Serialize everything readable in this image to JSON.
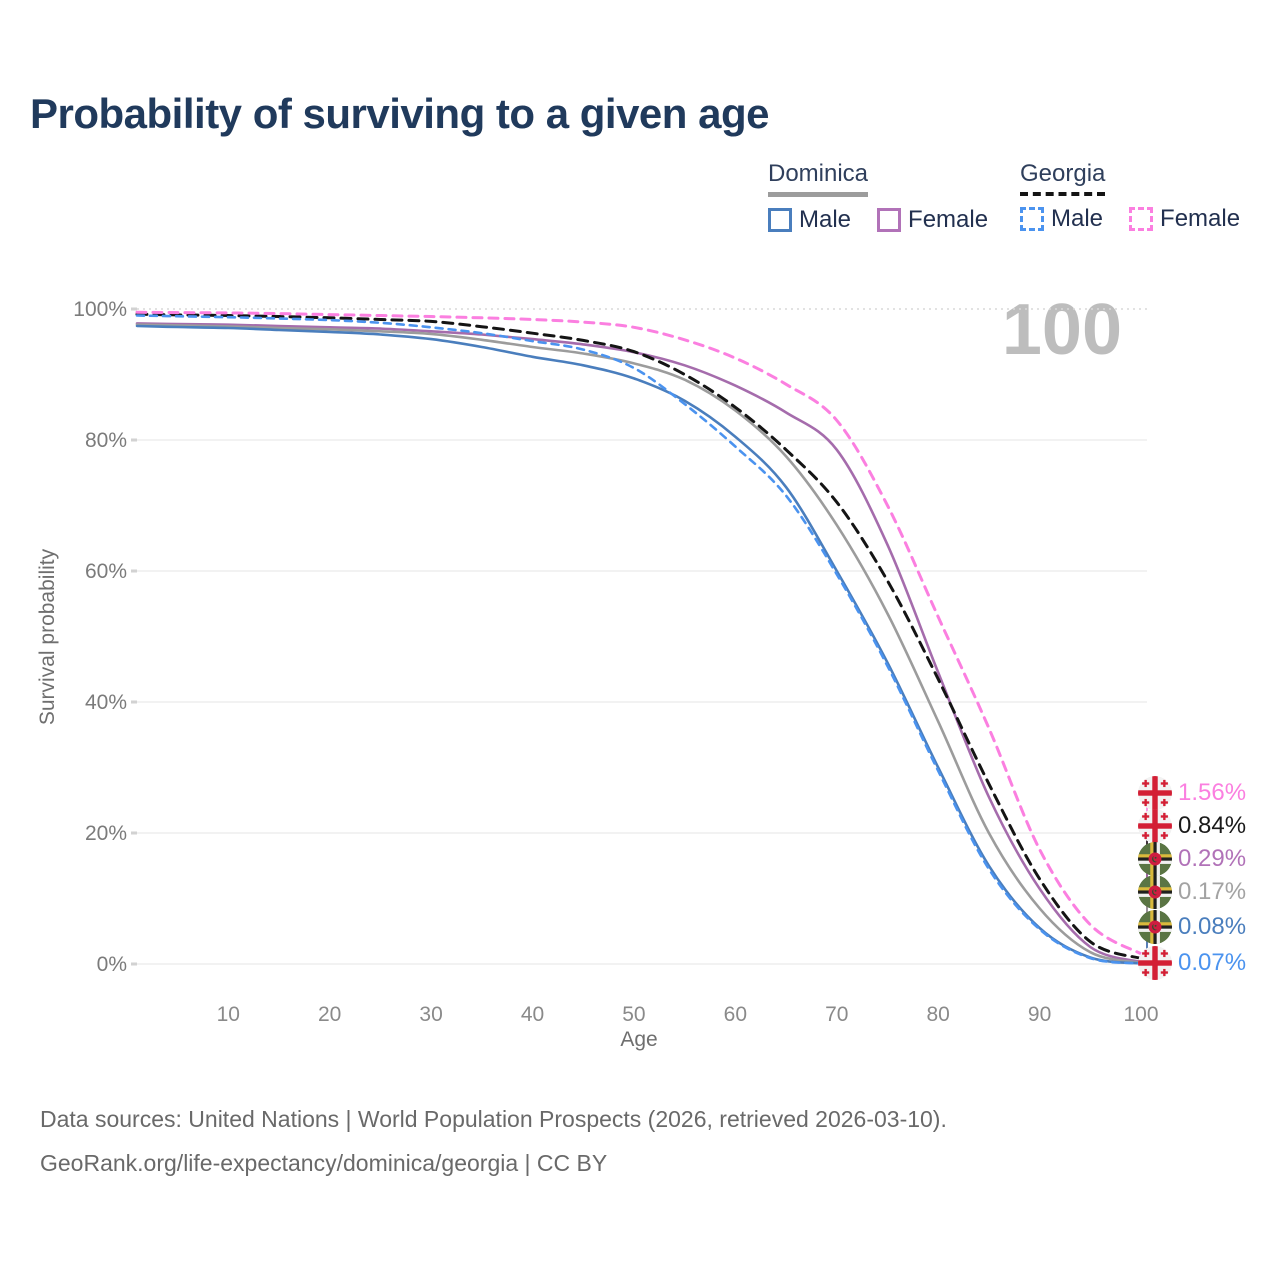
{
  "title": "Probability of surviving to a given age",
  "watermark_age_label": "100",
  "legend": {
    "groups": [
      {
        "name": "Dominica",
        "line_style": "solid",
        "line_color": "#9c9c9c",
        "items": [
          {
            "label": "Male",
            "color": "#4a7ebd",
            "dashed": false
          },
          {
            "label": "Female",
            "color": "#b172b8",
            "dashed": false
          }
        ]
      },
      {
        "name": "Georgia",
        "line_style": "dashed",
        "line_color": "#141414",
        "items": [
          {
            "label": "Male",
            "color": "#4b93ef",
            "dashed": true
          },
          {
            "label": "Female",
            "color": "#fb7fe0",
            "dashed": true
          }
        ]
      }
    ]
  },
  "chart_data": {
    "type": "line",
    "title": "Probability of surviving to a given age",
    "xlabel": "Age",
    "ylabel": "Survival probability",
    "xlim": [
      1,
      100
    ],
    "ylim": [
      0,
      100
    ],
    "grid": "horizontal",
    "x_ticks": [
      10,
      20,
      30,
      40,
      50,
      60,
      70,
      80,
      90,
      100
    ],
    "y_ticks": [
      "0%",
      "20%",
      "40%",
      "60%",
      "80%",
      "100%"
    ],
    "ages": [
      1,
      5,
      10,
      15,
      20,
      25,
      30,
      35,
      40,
      45,
      50,
      55,
      60,
      65,
      70,
      75,
      80,
      85,
      90,
      95,
      100
    ],
    "series": [
      {
        "name": "Dominica Female",
        "key": "dominica_female",
        "color": "#a56cac",
        "dashed": false,
        "values": [
          97.8,
          97.7,
          97.6,
          97.4,
          97.2,
          97.0,
          96.6,
          96.1,
          95.4,
          94.6,
          93.4,
          91.4,
          88.3,
          84.2,
          78.5,
          64.0,
          44.5,
          25.5,
          11.5,
          2.6,
          0.29
        ]
      },
      {
        "name": "Dominica Both sexes",
        "key": "dominica_avg",
        "color": "#9c9c9c",
        "dashed": false,
        "values": [
          97.6,
          97.5,
          97.35,
          97.1,
          96.9,
          96.6,
          96.2,
          95.3,
          94.2,
          93.2,
          91.7,
          89.2,
          84.5,
          77.5,
          67.0,
          53.5,
          37.0,
          20.0,
          8.5,
          1.8,
          0.17
        ]
      },
      {
        "name": "Dominica Male",
        "key": "dominica_male",
        "color": "#4a7ebd",
        "dashed": false,
        "values": [
          97.4,
          97.25,
          97.1,
          96.8,
          96.5,
          96.1,
          95.4,
          94.2,
          92.7,
          91.4,
          89.4,
          86.0,
          80.5,
          72.8,
          60.0,
          46.0,
          30.0,
          15.0,
          5.5,
          1.0,
          0.08
        ]
      },
      {
        "name": "Georgia Both sexes",
        "key": "georgia_avg",
        "color": "#141414",
        "dashed": true,
        "values": [
          99.2,
          99.1,
          99.0,
          98.85,
          98.65,
          98.4,
          98.1,
          97.3,
          96.3,
          95.2,
          93.5,
          90.0,
          85.0,
          78.5,
          70.5,
          58.5,
          43.5,
          27.5,
          13.0,
          3.4,
          0.84
        ]
      },
      {
        "name": "Georgia Male",
        "key": "georgia_male",
        "color": "#4b93ef",
        "dashed": true,
        "values": [
          99.0,
          98.9,
          98.75,
          98.55,
          98.3,
          97.9,
          97.2,
          96.3,
          95.1,
          93.8,
          91.0,
          85.5,
          79.0,
          71.5,
          59.5,
          45.5,
          29.5,
          14.5,
          5.3,
          0.9,
          0.07
        ]
      },
      {
        "name": "Georgia Female",
        "key": "georgia_female",
        "color": "#fb7fe0",
        "dashed": true,
        "values": [
          99.5,
          99.45,
          99.4,
          99.3,
          99.15,
          99.0,
          98.85,
          98.65,
          98.4,
          98.0,
          97.2,
          95.3,
          92.5,
          88.5,
          83.0,
          70.0,
          53.0,
          36.0,
          17.5,
          6.0,
          1.56
        ]
      }
    ]
  },
  "annotations": [
    {
      "value": "1.56%",
      "series_key": "georgia_female",
      "flag": "georgia",
      "color": "#fb7fe0"
    },
    {
      "value": "0.84%",
      "series_key": "georgia_avg",
      "flag": "georgia",
      "color": "#1a1a1a"
    },
    {
      "value": "0.29%",
      "series_key": "dominica_female",
      "flag": "dominica",
      "color": "#b172b8"
    },
    {
      "value": "0.17%",
      "series_key": "dominica_avg",
      "flag": "dominica",
      "color": "#a3a3a3"
    },
    {
      "value": "0.08%",
      "series_key": "dominica_male",
      "flag": "dominica",
      "color": "#4a7ebd"
    },
    {
      "value": "0.07%",
      "series_key": "georgia_male",
      "flag": "georgia",
      "color": "#4b93ef"
    }
  ],
  "footer": {
    "line1": "Data sources: United Nations | World Population Prospects (2026, retrieved 2026-03-10).",
    "line2": "GeoRank.org/life-expectancy/dominica/georgia | CC BY"
  }
}
